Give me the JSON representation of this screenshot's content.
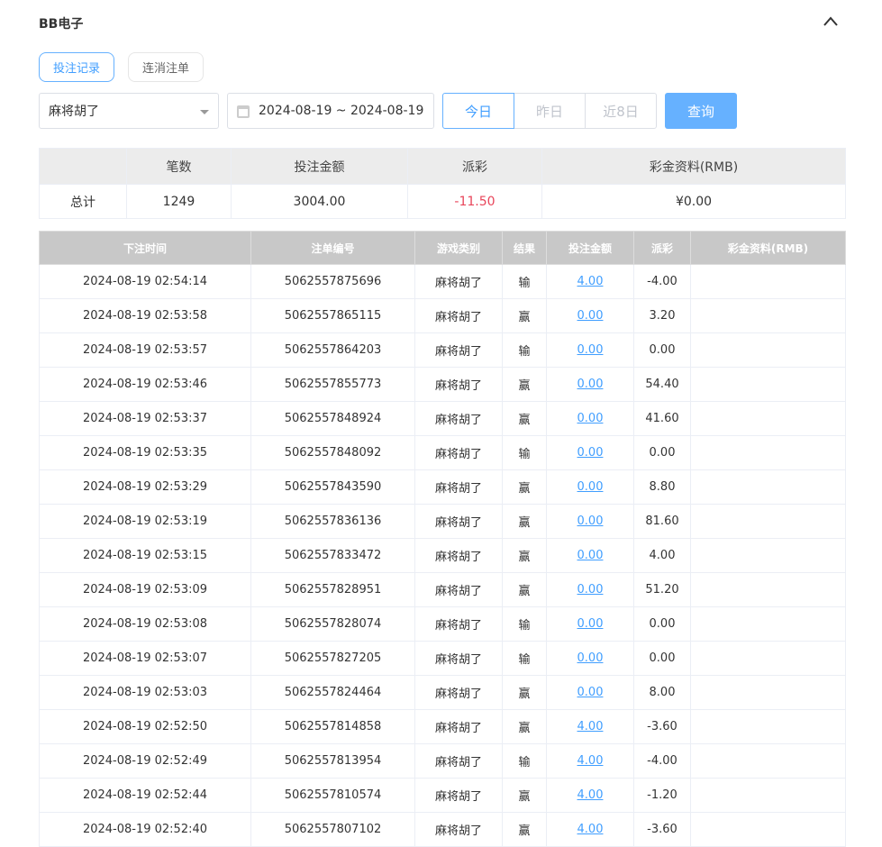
{
  "title": "BB电子",
  "tabs": [
    {
      "label": "投注记录",
      "active": true
    },
    {
      "label": "连消注单",
      "active": false
    }
  ],
  "filters": {
    "game": "麻将胡了",
    "date_range": "2024-08-19 ~ 2024-08-19",
    "quick": [
      "今日",
      "昨日",
      "近8日"
    ],
    "quick_active": 0,
    "query_label": "查询"
  },
  "summary": {
    "headers": [
      "",
      "笔数",
      "投注金额",
      "派彩",
      "彩金资料(RMB)"
    ],
    "row": [
      "总计",
      "1249",
      "3004.00",
      "-11.50",
      "¥0.00"
    ]
  },
  "detail": {
    "headers": [
      "下注时间",
      "注单编号",
      "游戏类别",
      "结果",
      "投注金额",
      "派彩",
      "彩金资料(RMB)"
    ],
    "rows": [
      [
        "2024-08-19 02:54:14",
        "5062557875696",
        "麻将胡了",
        "输",
        "4.00",
        "-4.00",
        ""
      ],
      [
        "2024-08-19 02:53:58",
        "5062557865115",
        "麻将胡了",
        "赢",
        "0.00",
        "3.20",
        ""
      ],
      [
        "2024-08-19 02:53:57",
        "5062557864203",
        "麻将胡了",
        "输",
        "0.00",
        "0.00",
        ""
      ],
      [
        "2024-08-19 02:53:46",
        "5062557855773",
        "麻将胡了",
        "赢",
        "0.00",
        "54.40",
        ""
      ],
      [
        "2024-08-19 02:53:37",
        "5062557848924",
        "麻将胡了",
        "赢",
        "0.00",
        "41.60",
        ""
      ],
      [
        "2024-08-19 02:53:35",
        "5062557848092",
        "麻将胡了",
        "输",
        "0.00",
        "0.00",
        ""
      ],
      [
        "2024-08-19 02:53:29",
        "5062557843590",
        "麻将胡了",
        "赢",
        "0.00",
        "8.80",
        ""
      ],
      [
        "2024-08-19 02:53:19",
        "5062557836136",
        "麻将胡了",
        "赢",
        "0.00",
        "81.60",
        ""
      ],
      [
        "2024-08-19 02:53:15",
        "5062557833472",
        "麻将胡了",
        "赢",
        "0.00",
        "4.00",
        ""
      ],
      [
        "2024-08-19 02:53:09",
        "5062557828951",
        "麻将胡了",
        "赢",
        "0.00",
        "51.20",
        ""
      ],
      [
        "2024-08-19 02:53:08",
        "5062557828074",
        "麻将胡了",
        "输",
        "0.00",
        "0.00",
        ""
      ],
      [
        "2024-08-19 02:53:07",
        "5062557827205",
        "麻将胡了",
        "输",
        "0.00",
        "0.00",
        ""
      ],
      [
        "2024-08-19 02:53:03",
        "5062557824464",
        "麻将胡了",
        "赢",
        "0.00",
        "8.00",
        ""
      ],
      [
        "2024-08-19 02:52:50",
        "5062557814858",
        "麻将胡了",
        "赢",
        "4.00",
        "-3.60",
        ""
      ],
      [
        "2024-08-19 02:52:49",
        "5062557813954",
        "麻将胡了",
        "输",
        "4.00",
        "-4.00",
        ""
      ],
      [
        "2024-08-19 02:52:44",
        "5062557810574",
        "麻将胡了",
        "赢",
        "4.00",
        "-1.20",
        ""
      ],
      [
        "2024-08-19 02:52:40",
        "5062557807102",
        "麻将胡了",
        "赢",
        "4.00",
        "-3.60",
        ""
      ]
    ]
  },
  "colors": {
    "accent": "#409eff",
    "negative": "#e8455a",
    "query_bg": "#66b1ff"
  }
}
